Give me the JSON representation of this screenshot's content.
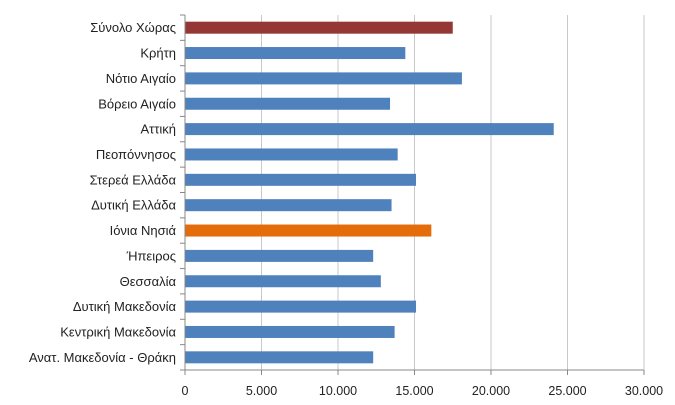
{
  "chart_data": {
    "type": "bar",
    "orientation": "horizontal",
    "title": "",
    "xlabel": "",
    "ylabel": "",
    "xlim": [
      0,
      30000
    ],
    "grid": true,
    "legend": "none",
    "categories": [
      "Σύνολο Χώρας",
      "Κρήτη",
      "Νότιο Αιγαίο",
      "Βόρειο Αιγαίο",
      "Αττική",
      "Πεοπόννησος",
      "Στερεά Ελλάδα",
      "Δυτική Ελλάδα",
      "Ιόνια Νησιά",
      "Ήπειρος",
      "Θεσσαλία",
      "Δυτική Μακεδονία",
      "Κεντρική Μακεδονία",
      "Ανατ. Μακεδονία - Θράκη"
    ],
    "values": [
      17500,
      14400,
      18100,
      13400,
      24100,
      13900,
      15100,
      13500,
      16100,
      12300,
      12800,
      15100,
      13700,
      12300
    ],
    "bar_colors": [
      "#953735",
      "#4f81bd",
      "#4f81bd",
      "#4f81bd",
      "#4f81bd",
      "#4f81bd",
      "#4f81bd",
      "#4f81bd",
      "#e46c0a",
      "#4f81bd",
      "#4f81bd",
      "#4f81bd",
      "#4f81bd",
      "#4f81bd"
    ],
    "x_ticks": [
      0,
      5000,
      10000,
      15000,
      20000,
      25000,
      30000
    ],
    "x_tick_labels": [
      "0",
      "5.000",
      "10.000",
      "15.000",
      "20.000",
      "25.000",
      "30.000"
    ]
  }
}
